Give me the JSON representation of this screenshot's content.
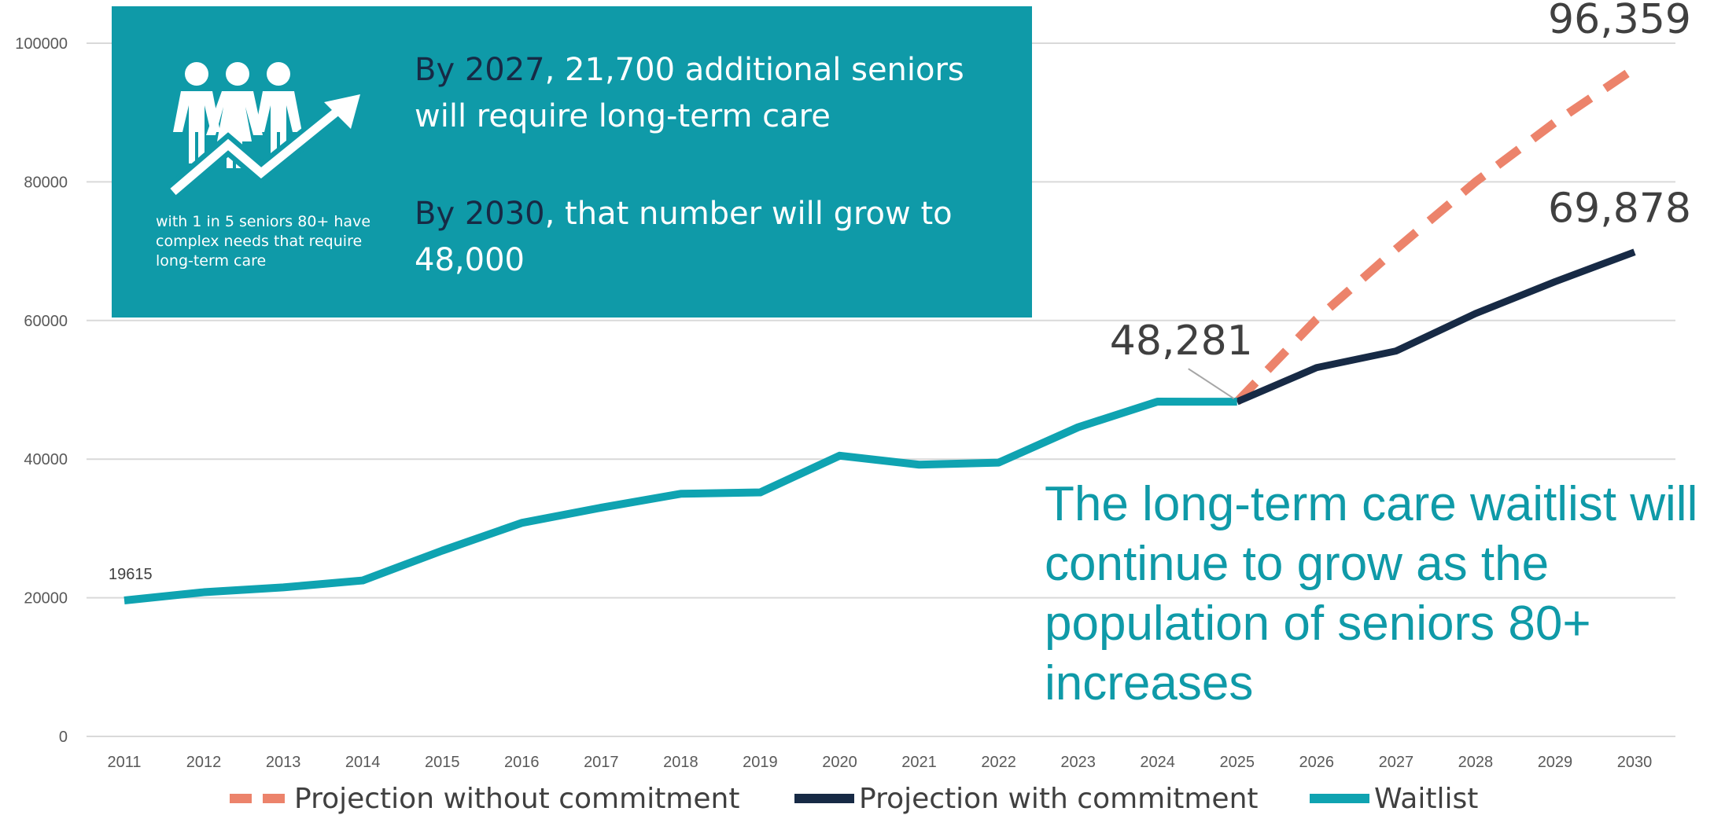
{
  "colors": {
    "projection_without": "#ec836b",
    "projection_with": "#172a45",
    "waitlist": "#0fa3b1",
    "info_box": "#0f9aa8",
    "gridline": "#d9d9d9"
  },
  "info_box": {
    "icon": "people-growth-arrow-icon",
    "caption": "with 1 in 5 seniors 80+ have complex needs that require long-term care",
    "line1_year": "By 2027",
    "line1_rest": ", 21,700 additional seniors will require long-term care",
    "line2_year": "By 2030",
    "line2_rest": ", that number will grow to 48,000"
  },
  "callout_text": "The long-term care waitlist will continue to grow as the population of seniors 80+ increases",
  "chart_data": {
    "type": "line",
    "x": [
      2011,
      2012,
      2013,
      2014,
      2015,
      2016,
      2017,
      2018,
      2019,
      2020,
      2021,
      2022,
      2023,
      2024,
      2025,
      2026,
      2027,
      2028,
      2029,
      2030
    ],
    "xticks": [
      "2011",
      "2012",
      "2013",
      "2014",
      "2015",
      "2016",
      "2017",
      "2018",
      "2019",
      "2020",
      "2021",
      "2022",
      "2023",
      "2024",
      "2025",
      "2026",
      "2027",
      "2028",
      "2029",
      "2030"
    ],
    "yticks": [
      "0",
      "20000",
      "40000",
      "60000",
      "80000",
      "100000"
    ],
    "ylim": [
      0,
      100000
    ],
    "grid": true,
    "legend_position": "bottom",
    "series": [
      {
        "name": "Projection without commitment",
        "style": "dashed",
        "x": [
          2025,
          2026,
          2027,
          2028,
          2029,
          2030
        ],
        "values": [
          48281,
          60200,
          70300,
          80000,
          88600,
          96359
        ]
      },
      {
        "name": "Projection with commitment",
        "style": "solid",
        "x": [
          2025,
          2026,
          2027,
          2028,
          2029,
          2030
        ],
        "values": [
          48281,
          53200,
          55600,
          61000,
          65600,
          69878
        ]
      },
      {
        "name": "Waitlist",
        "style": "solid",
        "x": [
          2011,
          2012,
          2013,
          2014,
          2015,
          2016,
          2017,
          2018,
          2019,
          2020,
          2021,
          2022,
          2023,
          2024,
          2025
        ],
        "values": [
          19615,
          20800,
          21500,
          22500,
          26800,
          30800,
          33000,
          35000,
          35200,
          40500,
          39200,
          39500,
          44600,
          48300,
          48281
        ]
      }
    ],
    "data_labels": [
      {
        "text": "19615",
        "x": 2011,
        "y": 19615
      },
      {
        "text": "48,281",
        "x": 2025,
        "y": 48281
      },
      {
        "text": "69,878",
        "x": 2030,
        "y": 69878
      },
      {
        "text": "96,359",
        "x": 2030,
        "y": 96359
      }
    ]
  }
}
